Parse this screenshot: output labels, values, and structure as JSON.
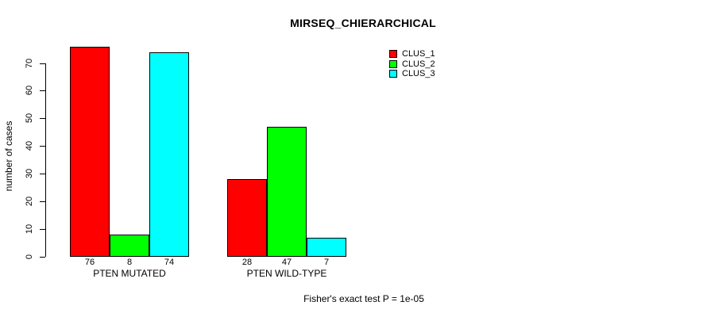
{
  "chart_data": {
    "type": "bar",
    "title": "MIRSEQ_CHIERARCHICAL",
    "ylabel": "number of cases",
    "xlabel": "",
    "categories": [
      "PTEN MUTATED",
      "PTEN WILD-TYPE"
    ],
    "series": [
      {
        "name": "CLUS_1",
        "color": "#ff0000",
        "values": [
          76,
          28
        ]
      },
      {
        "name": "CLUS_2",
        "color": "#00ff00",
        "values": [
          8,
          47
        ]
      },
      {
        "name": "CLUS_3",
        "color": "#00ffff",
        "values": [
          74,
          7
        ]
      }
    ],
    "ylim": [
      0,
      70
    ],
    "yticks": [
      0,
      10,
      20,
      30,
      40,
      50,
      60,
      70
    ],
    "grid": false,
    "legend_position": "top-right",
    "bar_border_color": "#000000",
    "value_labels_shown": true
  },
  "annotation": {
    "text": "Fisher's exact test P = 1e-05"
  }
}
